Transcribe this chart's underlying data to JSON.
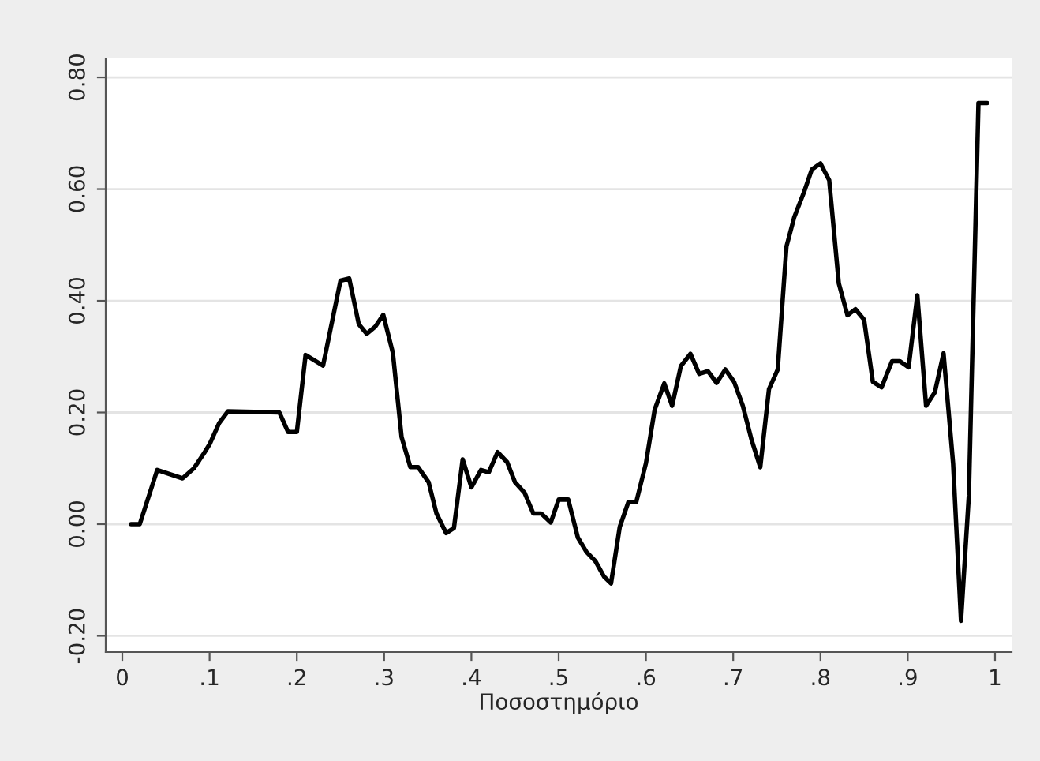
{
  "chart_data": {
    "type": "line",
    "xlabel": "Ποσοστημόριο",
    "x": [
      0.01,
      0.02,
      0.04,
      0.069,
      0.082,
      0.094,
      0.1,
      0.111,
      0.121,
      0.18,
      0.19,
      0.2,
      0.21,
      0.23,
      0.25,
      0.26,
      0.271,
      0.28,
      0.29,
      0.299,
      0.31,
      0.32,
      0.33,
      0.339,
      0.351,
      0.36,
      0.371,
      0.38,
      0.39,
      0.4,
      0.411,
      0.42,
      0.43,
      0.441,
      0.45,
      0.461,
      0.471,
      0.48,
      0.491,
      0.5,
      0.511,
      0.522,
      0.532,
      0.542,
      0.552,
      0.56,
      0.57,
      0.58,
      0.589,
      0.6,
      0.61,
      0.621,
      0.63,
      0.64,
      0.651,
      0.661,
      0.671,
      0.681,
      0.691,
      0.701,
      0.711,
      0.721,
      0.731,
      0.741,
      0.751,
      0.761,
      0.77,
      0.781,
      0.79,
      0.8,
      0.81,
      0.821,
      0.831,
      0.84,
      0.85,
      0.86,
      0.87,
      0.882,
      0.891,
      0.901,
      0.911,
      0.921,
      0.931,
      0.941,
      0.952,
      0.961,
      0.97,
      0.981,
      0.991
    ],
    "series": [
      {
        "color": "#000000",
        "values": [
          0,
          0,
          0.097,
          0.082,
          0.1,
          0.128,
          0.143,
          0.181,
          0.202,
          0.2,
          0.165,
          0.165,
          0.303,
          0.284,
          0.436,
          0.44,
          0.358,
          0.341,
          0.354,
          0.375,
          0.307,
          0.156,
          0.102,
          0.102,
          0.075,
          0.019,
          -0.016,
          -0.007,
          0.116,
          0.066,
          0.097,
          0.093,
          0.129,
          0.111,
          0.075,
          0.056,
          0.019,
          0.019,
          0.003,
          0.044,
          0.044,
          -0.024,
          -0.05,
          -0.066,
          -0.094,
          -0.106,
          -0.005,
          0.04,
          0.04,
          0.109,
          0.205,
          0.252,
          0.212,
          0.283,
          0.305,
          0.269,
          0.274,
          0.253,
          0.277,
          0.255,
          0.212,
          0.151,
          0.102,
          0.242,
          0.277,
          0.497,
          0.55,
          0.594,
          0.635,
          0.646,
          0.616,
          0.431,
          0.374,
          0.385,
          0.366,
          0.255,
          0.245,
          0.292,
          0.292,
          0.281,
          0.41,
          0.212,
          0.236,
          0.306,
          0.108,
          -0.173,
          0.051,
          0.754,
          0.754
        ]
      }
    ],
    "xlim": [
      -0.019,
      1.019
    ],
    "ylim": [
      -0.229,
      0.834
    ],
    "xticks": [
      0,
      {
        "value": 0.1,
        "label": ".1"
      },
      {
        "value": 0.2,
        "label": ".2"
      },
      {
        "value": 0.3,
        "label": ".3"
      },
      {
        "value": 0.4,
        "label": ".4"
      },
      {
        "value": 0.5,
        "label": ".5"
      },
      {
        "value": 0.6,
        "label": ".6"
      },
      {
        "value": 0.7,
        "label": ".7"
      },
      {
        "value": 0.8,
        "label": ".8"
      },
      {
        "value": 0.9,
        "label": ".9"
      },
      1
    ],
    "yticks": [
      {
        "value": -0.2,
        "label": "-0.20"
      },
      {
        "value": 0,
        "label": "0.00"
      },
      {
        "value": 0.2,
        "label": "0.20"
      },
      {
        "value": 0.4,
        "label": "0.40"
      },
      {
        "value": 0.6,
        "label": "0.60"
      },
      {
        "value": 0.8,
        "label": "0.80"
      }
    ],
    "grid": "y",
    "line_style": "solid",
    "marker": "none"
  }
}
